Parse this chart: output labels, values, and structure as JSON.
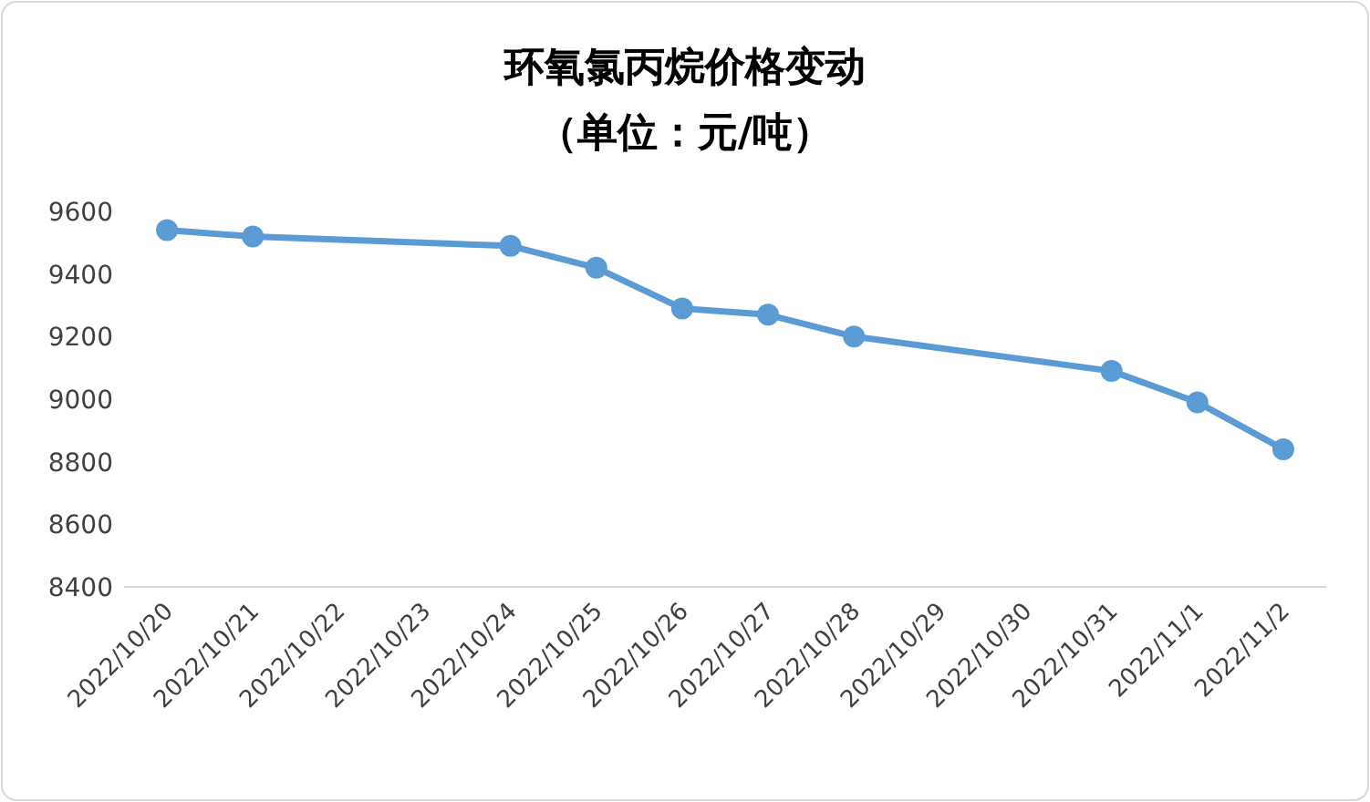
{
  "chart_data": {
    "type": "line",
    "title": "环氧氯丙烷价格变动",
    "subtitle": "（单位：元/吨）",
    "series": [
      {
        "color": "#5b9bd5",
        "x": [
          "2022-10-20",
          "2022-10-21",
          "2022-10-24",
          "2022-10-25",
          "2022-10-26",
          "2022-10-27",
          "2022-10-28",
          "2022-10-31",
          "2022-11-01",
          "2022-11-02"
        ],
        "values": [
          9540,
          9520,
          9490,
          9420,
          9290,
          9270,
          9200,
          9090,
          8990,
          8840
        ]
      }
    ],
    "xlim": [
      "2022-10-19T12:00",
      "2022-11-02T12:00"
    ],
    "xticks": [
      {
        "value": "2022-10-20",
        "label": "2022/10/20"
      },
      {
        "value": "2022-10-21",
        "label": "2022/10/21"
      },
      {
        "value": "2022-10-22",
        "label": "2022/10/22"
      },
      {
        "value": "2022-10-23",
        "label": "2022/10/23"
      },
      {
        "value": "2022-10-24",
        "label": "2022/10/24"
      },
      {
        "value": "2022-10-25",
        "label": "2022/10/25"
      },
      {
        "value": "2022-10-26",
        "label": "2022/10/26"
      },
      {
        "value": "2022-10-27",
        "label": "2022/10/27"
      },
      {
        "value": "2022-10-28",
        "label": "2022/10/28"
      },
      {
        "value": "2022-10-29",
        "label": "2022/10/29"
      },
      {
        "value": "2022-10-30",
        "label": "2022/10/30"
      },
      {
        "value": "2022-10-31",
        "label": "2022/10/31"
      },
      {
        "value": "2022-11-01",
        "label": "2022/11/1"
      },
      {
        "value": "2022-11-02",
        "label": "2022/11/2"
      }
    ],
    "ylim": [
      8400,
      9600
    ],
    "yticks": [
      8400,
      8600,
      8800,
      9000,
      9200,
      9400,
      9600
    ],
    "marker": "circle",
    "line_style": "solid"
  }
}
